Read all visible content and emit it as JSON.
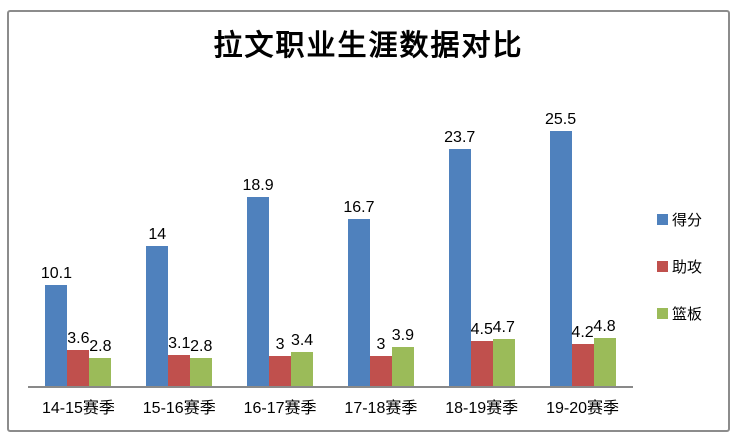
{
  "chart_data": {
    "type": "bar",
    "title": "拉文职业生涯数据对比",
    "categories": [
      "14-15赛季",
      "15-16赛季",
      "16-17赛季",
      "17-18赛季",
      "18-19赛季",
      "19-20赛季"
    ],
    "series": [
      {
        "key": "points",
        "name": "得分",
        "color": "#4f81bd",
        "values": [
          10.1,
          14,
          18.9,
          16.7,
          23.7,
          25.5
        ]
      },
      {
        "key": "assists",
        "name": "助攻",
        "color": "#c0504d",
        "values": [
          3.6,
          3.1,
          3,
          3,
          4.5,
          4.2
        ]
      },
      {
        "key": "rebounds",
        "name": "篮板",
        "color": "#9bbb59",
        "values": [
          2.8,
          2.8,
          3.4,
          3.9,
          4.7,
          4.8
        ]
      }
    ],
    "data_labels_shown": true,
    "xlabel": "",
    "ylabel": "",
    "ylim": [
      0,
      28
    ],
    "value_axis_visible": false,
    "grid": false,
    "legend_position": "right"
  }
}
